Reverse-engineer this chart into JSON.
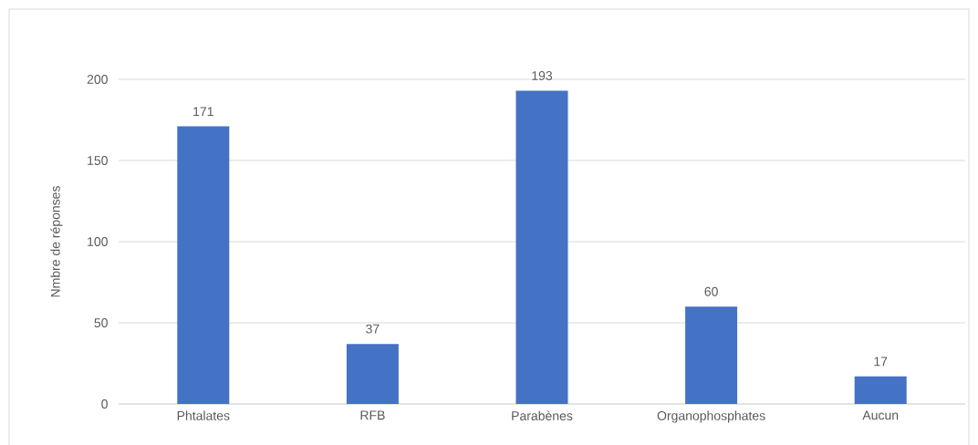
{
  "chart_data": {
    "type": "bar",
    "ylabel": "Nmbre de réponses",
    "categories": [
      "Phtalates",
      "RFB",
      "Parabènes",
      "Organophosphates",
      "Aucun"
    ],
    "values": [
      171,
      37,
      193,
      60,
      17
    ],
    "color": "#4472c4",
    "ylim": [
      0,
      200
    ],
    "yticks": [
      0,
      50,
      100,
      150,
      200
    ],
    "grid": "y",
    "data_labels": true
  }
}
